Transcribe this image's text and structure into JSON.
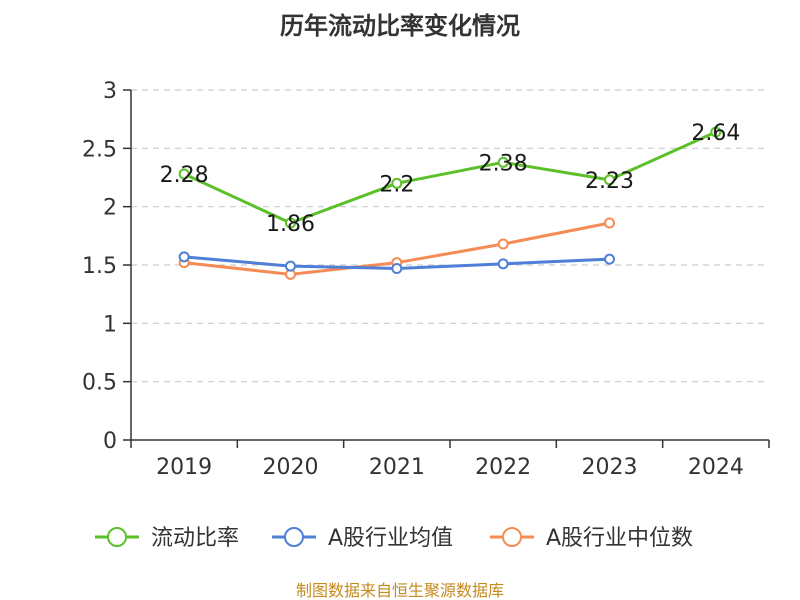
{
  "chart_data": {
    "type": "line",
    "title": "历年流动比率变化情况",
    "categories": [
      "2019",
      "2020",
      "2021",
      "2022",
      "2023",
      "2024"
    ],
    "ylim": [
      0,
      3
    ],
    "yticks": [
      "0",
      "0.5",
      "1",
      "1.5",
      "2",
      "2.5",
      "3"
    ],
    "grid": true,
    "legend_position": "bottom",
    "series": [
      {
        "name": "流动比率",
        "color": "#5cc02a",
        "values": [
          2.28,
          1.86,
          2.2,
          2.38,
          2.23,
          2.64
        ],
        "labels": [
          "2.28",
          "1.86",
          "2.2",
          "2.38",
          "2.23",
          "2.64"
        ]
      },
      {
        "name": "A股行业均值",
        "color": "#4f7fd6",
        "values": [
          1.57,
          1.49,
          1.47,
          1.51,
          1.55,
          null
        ]
      },
      {
        "name": "A股行业中位数",
        "color": "#f58c55",
        "values": [
          1.52,
          1.42,
          1.52,
          1.68,
          1.86,
          null
        ]
      }
    ]
  },
  "source_note": "制图数据来自恒生聚源数据库"
}
